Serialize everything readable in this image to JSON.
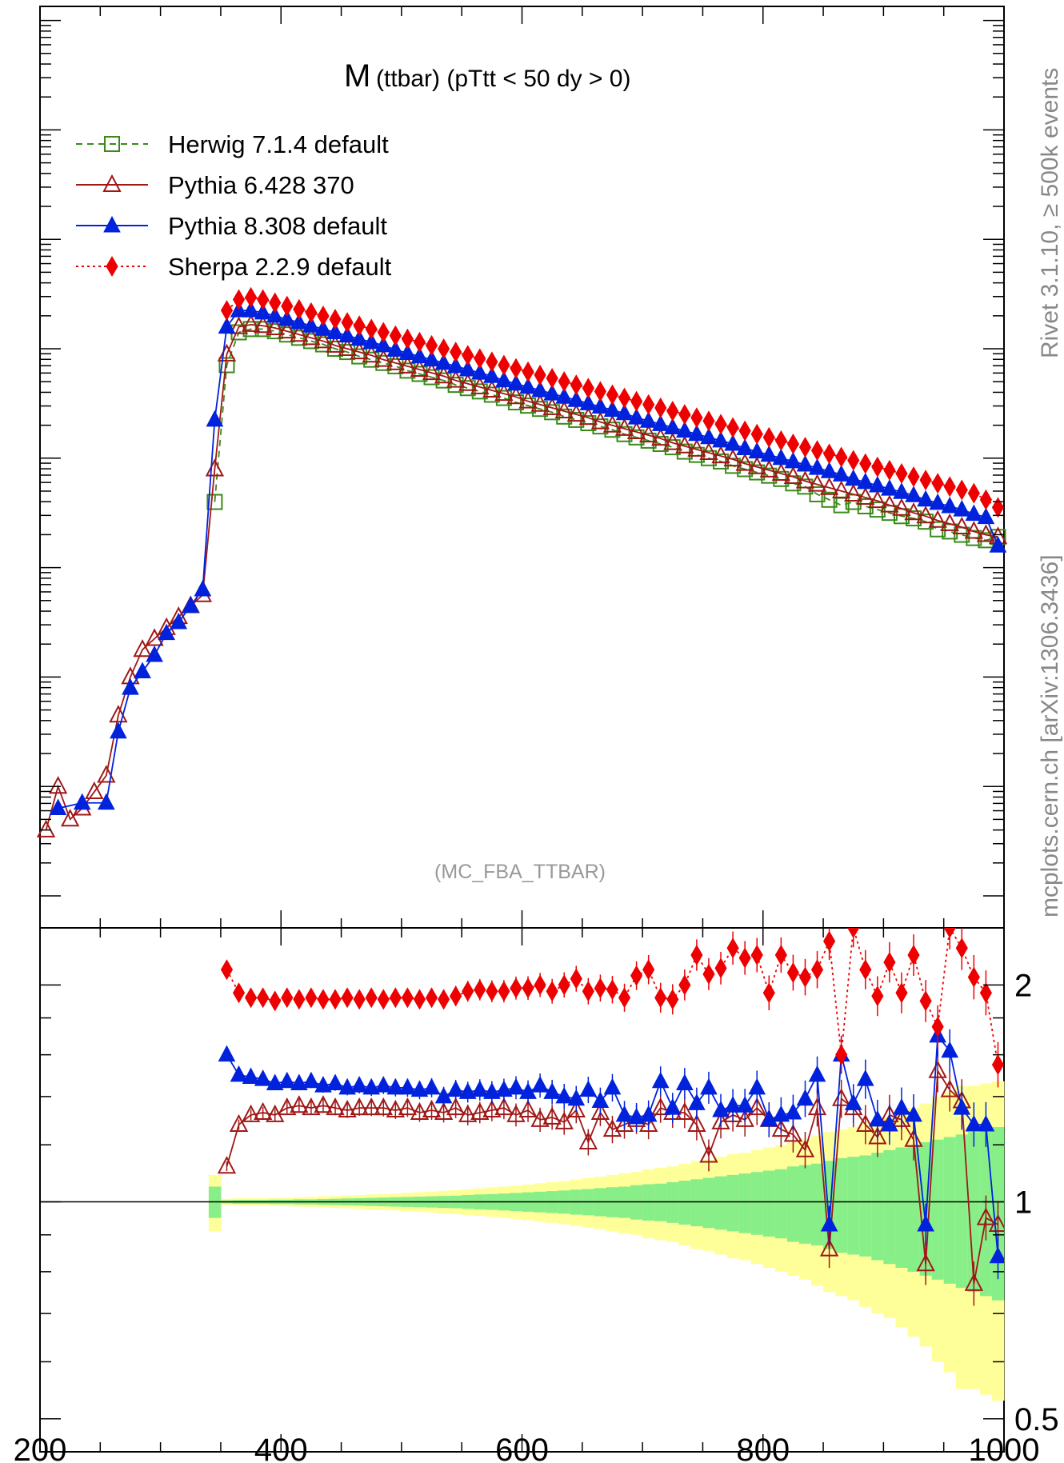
{
  "plot": {
    "title_main": "M",
    "title_rest": "(ttbar) (pTtt < 50 dy > 0)",
    "analysis": "(MC_FBA_TTBAR)",
    "side_text_1": "Rivet 3.1.10, ≥ 500k events",
    "side_text_2": "mcplots.cern.ch [arXiv:1306.3436]"
  },
  "chart_data": {
    "type": "line",
    "x_ticks": [
      "200",
      "400",
      "600",
      "800",
      "1000"
    ],
    "xlim": [
      200,
      1000
    ],
    "ratio_ticks": [
      "2",
      "1",
      "0.5"
    ],
    "ratio_ylim": [
      0.45,
      2.4
    ],
    "main_log_decades": 8,
    "series": [
      {
        "name": "Herwig 7.1.4 default",
        "color": "#3a8a1a",
        "marker": "open-square",
        "line": "dashed",
        "x": [
          345,
          355,
          365,
          375,
          385,
          395,
          405,
          415,
          425,
          435,
          445,
          455,
          465,
          475,
          485,
          495,
          505,
          515,
          525,
          535,
          545,
          555,
          565,
          575,
          585,
          595,
          605,
          615,
          625,
          635,
          645,
          655,
          665,
          675,
          685,
          695,
          705,
          715,
          725,
          735,
          745,
          755,
          765,
          775,
          785,
          795,
          805,
          815,
          825,
          835,
          845,
          855,
          865,
          875,
          885,
          895,
          905,
          915,
          925,
          935,
          945,
          955,
          965,
          975,
          985,
          995
        ],
        "y": [
          3.6,
          4.85,
          5.15,
          5.18,
          5.18,
          5.16,
          5.13,
          5.1,
          5.07,
          5.04,
          5.0,
          4.97,
          4.93,
          4.9,
          4.87,
          4.84,
          4.8,
          4.77,
          4.74,
          4.71,
          4.67,
          4.64,
          4.61,
          4.58,
          4.55,
          4.51,
          4.48,
          4.45,
          4.42,
          4.38,
          4.35,
          4.32,
          4.29,
          4.26,
          4.22,
          4.19,
          4.16,
          4.13,
          4.1,
          4.06,
          4.03,
          4.0,
          3.97,
          3.93,
          3.9,
          3.87,
          3.84,
          3.81,
          3.77,
          3.74,
          3.67,
          3.62,
          3.57,
          3.6,
          3.56,
          3.53,
          3.5,
          3.47,
          3.45,
          3.42,
          3.35,
          3.33,
          3.3,
          3.27,
          3.25,
          3.28
        ]
      },
      {
        "name": "Pythia 6.428 370",
        "color": "#a01818",
        "marker": "open-triangle",
        "line": "solid",
        "x": [
          205,
          215,
          225,
          235,
          245,
          255,
          265,
          275,
          285,
          295,
          305,
          315,
          325,
          335,
          345,
          355,
          365,
          375,
          385,
          395,
          405,
          415,
          425,
          435,
          445,
          455,
          465,
          475,
          485,
          495,
          505,
          515,
          525,
          535,
          545,
          555,
          565,
          575,
          585,
          595,
          605,
          615,
          625,
          635,
          645,
          655,
          665,
          675,
          685,
          695,
          705,
          715,
          725,
          735,
          745,
          755,
          765,
          775,
          785,
          795,
          805,
          815,
          825,
          835,
          845,
          855,
          865,
          875,
          885,
          895,
          905,
          915,
          925,
          935,
          945,
          955,
          965,
          975,
          985,
          995
        ],
        "y": [
          0.6,
          1.0,
          0.7,
          0.8,
          0.95,
          1.1,
          1.65,
          2.0,
          2.25,
          2.35,
          2.45,
          2.55,
          2.65,
          2.75,
          3.9,
          4.95,
          5.2,
          5.22,
          5.21,
          5.19,
          5.16,
          5.13,
          5.1,
          5.07,
          5.03,
          5.0,
          4.97,
          4.94,
          4.9,
          4.87,
          4.84,
          4.81,
          4.78,
          4.75,
          4.71,
          4.68,
          4.65,
          4.62,
          4.59,
          4.56,
          4.52,
          4.49,
          4.46,
          4.43,
          4.4,
          4.37,
          4.33,
          4.3,
          4.27,
          4.24,
          4.21,
          4.18,
          4.14,
          4.11,
          4.08,
          4.05,
          4.02,
          3.99,
          3.95,
          3.92,
          3.89,
          3.86,
          3.83,
          3.79,
          3.76,
          3.73,
          3.7,
          3.67,
          3.64,
          3.61,
          3.57,
          3.54,
          3.5,
          3.47,
          3.43,
          3.4,
          3.37,
          3.33,
          3.3,
          3.28
        ]
      },
      {
        "name": "Pythia 8.308 default",
        "color": "#0022dd",
        "marker": "filled-triangle",
        "line": "solid",
        "x": [
          215,
          235,
          255,
          265,
          275,
          285,
          295,
          305,
          315,
          325,
          335,
          345,
          355,
          365,
          375,
          385,
          395,
          405,
          415,
          425,
          435,
          445,
          455,
          465,
          475,
          485,
          495,
          505,
          515,
          525,
          535,
          545,
          555,
          565,
          575,
          585,
          595,
          605,
          615,
          625,
          635,
          645,
          655,
          665,
          675,
          685,
          695,
          705,
          715,
          725,
          735,
          745,
          755,
          765,
          775,
          785,
          795,
          805,
          815,
          825,
          835,
          845,
          855,
          865,
          875,
          885,
          895,
          905,
          915,
          925,
          935,
          945,
          955,
          965,
          975,
          985,
          995
        ],
        "y": [
          0.8,
          0.85,
          0.85,
          1.5,
          1.9,
          2.05,
          2.2,
          2.4,
          2.5,
          2.65,
          2.8,
          4.35,
          5.2,
          5.35,
          5.35,
          5.33,
          5.3,
          5.27,
          5.24,
          5.21,
          5.18,
          5.15,
          5.12,
          5.09,
          5.06,
          5.03,
          4.99,
          4.96,
          4.93,
          4.9,
          4.87,
          4.84,
          4.81,
          4.78,
          4.75,
          4.71,
          4.68,
          4.65,
          4.62,
          4.59,
          4.56,
          4.53,
          4.5,
          4.47,
          4.44,
          4.41,
          4.37,
          4.34,
          4.31,
          4.28,
          4.25,
          4.22,
          4.19,
          4.16,
          4.13,
          4.09,
          4.06,
          4.03,
          4.0,
          3.97,
          3.94,
          3.91,
          3.88,
          3.85,
          3.81,
          3.78,
          3.75,
          3.72,
          3.69,
          3.66,
          3.62,
          3.59,
          3.56,
          3.53,
          3.49,
          3.46,
          3.2
        ]
      },
      {
        "name": "Sherpa 2.2.9 default",
        "color": "#ee0000",
        "marker": "filled-diamond",
        "line": "dotted",
        "x": [
          355,
          365,
          375,
          385,
          395,
          405,
          415,
          425,
          435,
          445,
          455,
          465,
          475,
          485,
          495,
          505,
          515,
          525,
          535,
          545,
          555,
          565,
          575,
          585,
          595,
          605,
          615,
          625,
          635,
          645,
          655,
          665,
          675,
          685,
          695,
          705,
          715,
          725,
          735,
          745,
          755,
          765,
          775,
          785,
          795,
          805,
          815,
          825,
          835,
          845,
          855,
          865,
          875,
          885,
          895,
          905,
          915,
          925,
          935,
          945,
          955,
          965,
          975,
          985,
          995
        ],
        "y": [
          5.35,
          5.45,
          5.47,
          5.45,
          5.42,
          5.39,
          5.36,
          5.33,
          5.3,
          5.27,
          5.24,
          5.21,
          5.18,
          5.15,
          5.12,
          5.09,
          5.06,
          5.03,
          5.0,
          4.97,
          4.94,
          4.91,
          4.88,
          4.85,
          4.82,
          4.79,
          4.76,
          4.73,
          4.7,
          4.67,
          4.64,
          4.61,
          4.58,
          4.55,
          4.52,
          4.49,
          4.46,
          4.43,
          4.4,
          4.37,
          4.34,
          4.31,
          4.28,
          4.25,
          4.22,
          4.19,
          4.16,
          4.13,
          4.1,
          4.07,
          4.04,
          4.01,
          3.98,
          3.95,
          3.92,
          3.89,
          3.86,
          3.83,
          3.8,
          3.77,
          3.74,
          3.71,
          3.68,
          3.62,
          3.55
        ]
      }
    ],
    "ratio_series": [
      {
        "name": "Herwig 7.1.4 default",
        "color": "#3a8a1a",
        "marker": "none",
        "x": [],
        "y": []
      },
      {
        "name": "Pythia 6.428 370",
        "color": "#a01818",
        "marker": "open-triangle",
        "x": [
          355,
          365,
          375,
          385,
          395,
          405,
          415,
          425,
          435,
          445,
          455,
          465,
          475,
          485,
          495,
          505,
          515,
          525,
          535,
          545,
          555,
          565,
          575,
          585,
          595,
          605,
          615,
          625,
          635,
          645,
          655,
          665,
          675,
          685,
          695,
          705,
          715,
          725,
          735,
          745,
          755,
          765,
          775,
          785,
          795,
          805,
          815,
          825,
          835,
          845,
          855,
          865,
          875,
          885,
          895,
          905,
          915,
          925,
          935,
          945,
          955,
          965,
          975,
          985,
          995
        ],
        "y": [
          1.12,
          1.28,
          1.32,
          1.33,
          1.32,
          1.35,
          1.36,
          1.35,
          1.36,
          1.35,
          1.34,
          1.35,
          1.35,
          1.35,
          1.34,
          1.35,
          1.33,
          1.34,
          1.33,
          1.35,
          1.32,
          1.33,
          1.34,
          1.35,
          1.32,
          1.34,
          1.3,
          1.31,
          1.29,
          1.34,
          1.21,
          1.33,
          1.26,
          1.28,
          1.3,
          1.28,
          1.35,
          1.33,
          1.33,
          1.28,
          1.16,
          1.29,
          1.32,
          1.3,
          1.35,
          1.3,
          1.26,
          1.24,
          1.18,
          1.35,
          0.86,
          1.39,
          1.35,
          1.28,
          1.23,
          1.32,
          1.3,
          1.22,
          0.82,
          1.52,
          1.43,
          1.38,
          0.77,
          0.95,
          0.93
        ]
      },
      {
        "name": "Pythia 8.308 default",
        "color": "#0022dd",
        "marker": "filled-triangle",
        "x": [
          355,
          365,
          375,
          385,
          395,
          405,
          415,
          425,
          435,
          445,
          455,
          465,
          475,
          485,
          495,
          505,
          515,
          525,
          535,
          545,
          555,
          565,
          575,
          585,
          595,
          605,
          615,
          625,
          635,
          645,
          655,
          665,
          675,
          685,
          695,
          705,
          715,
          725,
          735,
          745,
          755,
          765,
          775,
          785,
          795,
          805,
          815,
          825,
          835,
          845,
          855,
          865,
          875,
          885,
          895,
          905,
          915,
          925,
          935,
          945,
          955,
          965,
          975,
          985,
          995
        ],
        "y": [
          1.6,
          1.5,
          1.49,
          1.48,
          1.46,
          1.47,
          1.46,
          1.47,
          1.45,
          1.46,
          1.44,
          1.45,
          1.44,
          1.45,
          1.44,
          1.44,
          1.43,
          1.44,
          1.4,
          1.43,
          1.42,
          1.43,
          1.42,
          1.43,
          1.44,
          1.42,
          1.45,
          1.42,
          1.4,
          1.39,
          1.43,
          1.38,
          1.44,
          1.32,
          1.31,
          1.32,
          1.47,
          1.35,
          1.46,
          1.37,
          1.44,
          1.34,
          1.36,
          1.36,
          1.44,
          1.3,
          1.32,
          1.33,
          1.39,
          1.5,
          0.93,
          1.6,
          1.37,
          1.48,
          1.3,
          1.28,
          1.35,
          1.32,
          0.93,
          1.7,
          1.62,
          1.35,
          1.28,
          1.28,
          0.84
        ]
      },
      {
        "name": "Sherpa 2.2.9 default",
        "color": "#ee0000",
        "marker": "filled-diamond",
        "x": [
          355,
          365,
          375,
          385,
          395,
          405,
          415,
          425,
          435,
          445,
          455,
          465,
          475,
          485,
          495,
          505,
          515,
          525,
          535,
          545,
          555,
          565,
          575,
          585,
          595,
          605,
          615,
          625,
          635,
          645,
          655,
          665,
          675,
          685,
          695,
          705,
          715,
          725,
          735,
          745,
          755,
          765,
          775,
          785,
          795,
          805,
          815,
          825,
          835,
          845,
          855,
          865,
          875,
          885,
          895,
          905,
          915,
          925,
          935,
          945,
          955,
          965,
          975,
          985,
          995
        ],
        "y": [
          2.1,
          1.95,
          1.92,
          1.92,
          1.9,
          1.92,
          1.91,
          1.92,
          1.91,
          1.91,
          1.92,
          1.91,
          1.92,
          1.91,
          1.92,
          1.92,
          1.91,
          1.92,
          1.91,
          1.93,
          1.96,
          1.97,
          1.96,
          1.96,
          1.98,
          1.98,
          2.0,
          1.96,
          2.0,
          2.04,
          1.96,
          1.98,
          1.97,
          1.92,
          2.06,
          2.1,
          1.92,
          1.91,
          2.0,
          2.2,
          2.07,
          2.11,
          2.25,
          2.18,
          2.2,
          1.95,
          2.2,
          2.08,
          2.05,
          2.1,
          2.3,
          1.6,
          2.4,
          2.1,
          1.93,
          2.15,
          1.95,
          2.2,
          1.9,
          1.75,
          2.4,
          2.25,
          2.05,
          1.95,
          1.55
        ]
      }
    ],
    "uncertainty_band": {
      "x": [
        345,
        355,
        365,
        375,
        385,
        395,
        405,
        415,
        425,
        435,
        445,
        455,
        465,
        475,
        485,
        495,
        505,
        515,
        525,
        535,
        545,
        555,
        565,
        575,
        585,
        595,
        605,
        615,
        625,
        635,
        645,
        655,
        665,
        675,
        685,
        695,
        705,
        715,
        725,
        735,
        745,
        755,
        765,
        775,
        785,
        795,
        805,
        815,
        825,
        835,
        845,
        855,
        865,
        875,
        885,
        895,
        905,
        915,
        925,
        935,
        945,
        955,
        965,
        975,
        985,
        995
      ],
      "yellow_half": [
        0.09,
        0.01,
        0.012,
        0.012,
        0.012,
        0.013,
        0.014,
        0.015,
        0.016,
        0.018,
        0.019,
        0.02,
        0.022,
        0.024,
        0.025,
        0.027,
        0.029,
        0.031,
        0.033,
        0.036,
        0.038,
        0.041,
        0.044,
        0.047,
        0.05,
        0.053,
        0.057,
        0.061,
        0.065,
        0.069,
        0.074,
        0.079,
        0.084,
        0.09,
        0.096,
        0.1,
        0.11,
        0.115,
        0.12,
        0.13,
        0.14,
        0.145,
        0.155,
        0.165,
        0.17,
        0.18,
        0.19,
        0.2,
        0.21,
        0.22,
        0.235,
        0.25,
        0.26,
        0.27,
        0.285,
        0.3,
        0.31,
        0.33,
        0.35,
        0.37,
        0.4,
        0.42,
        0.45,
        0.45,
        0.46,
        0.47
      ],
      "green_half": [
        0.05,
        0.005,
        0.006,
        0.006,
        0.006,
        0.007,
        0.007,
        0.008,
        0.008,
        0.009,
        0.01,
        0.011,
        0.012,
        0.013,
        0.014,
        0.015,
        0.016,
        0.017,
        0.018,
        0.019,
        0.02,
        0.022,
        0.024,
        0.025,
        0.027,
        0.029,
        0.031,
        0.033,
        0.035,
        0.037,
        0.04,
        0.042,
        0.045,
        0.048,
        0.05,
        0.055,
        0.058,
        0.06,
        0.065,
        0.07,
        0.075,
        0.08,
        0.085,
        0.09,
        0.095,
        0.1,
        0.105,
        0.11,
        0.12,
        0.125,
        0.13,
        0.14,
        0.15,
        0.155,
        0.16,
        0.17,
        0.18,
        0.19,
        0.2,
        0.21,
        0.22,
        0.23,
        0.24,
        0.25,
        0.26,
        0.27
      ]
    }
  }
}
